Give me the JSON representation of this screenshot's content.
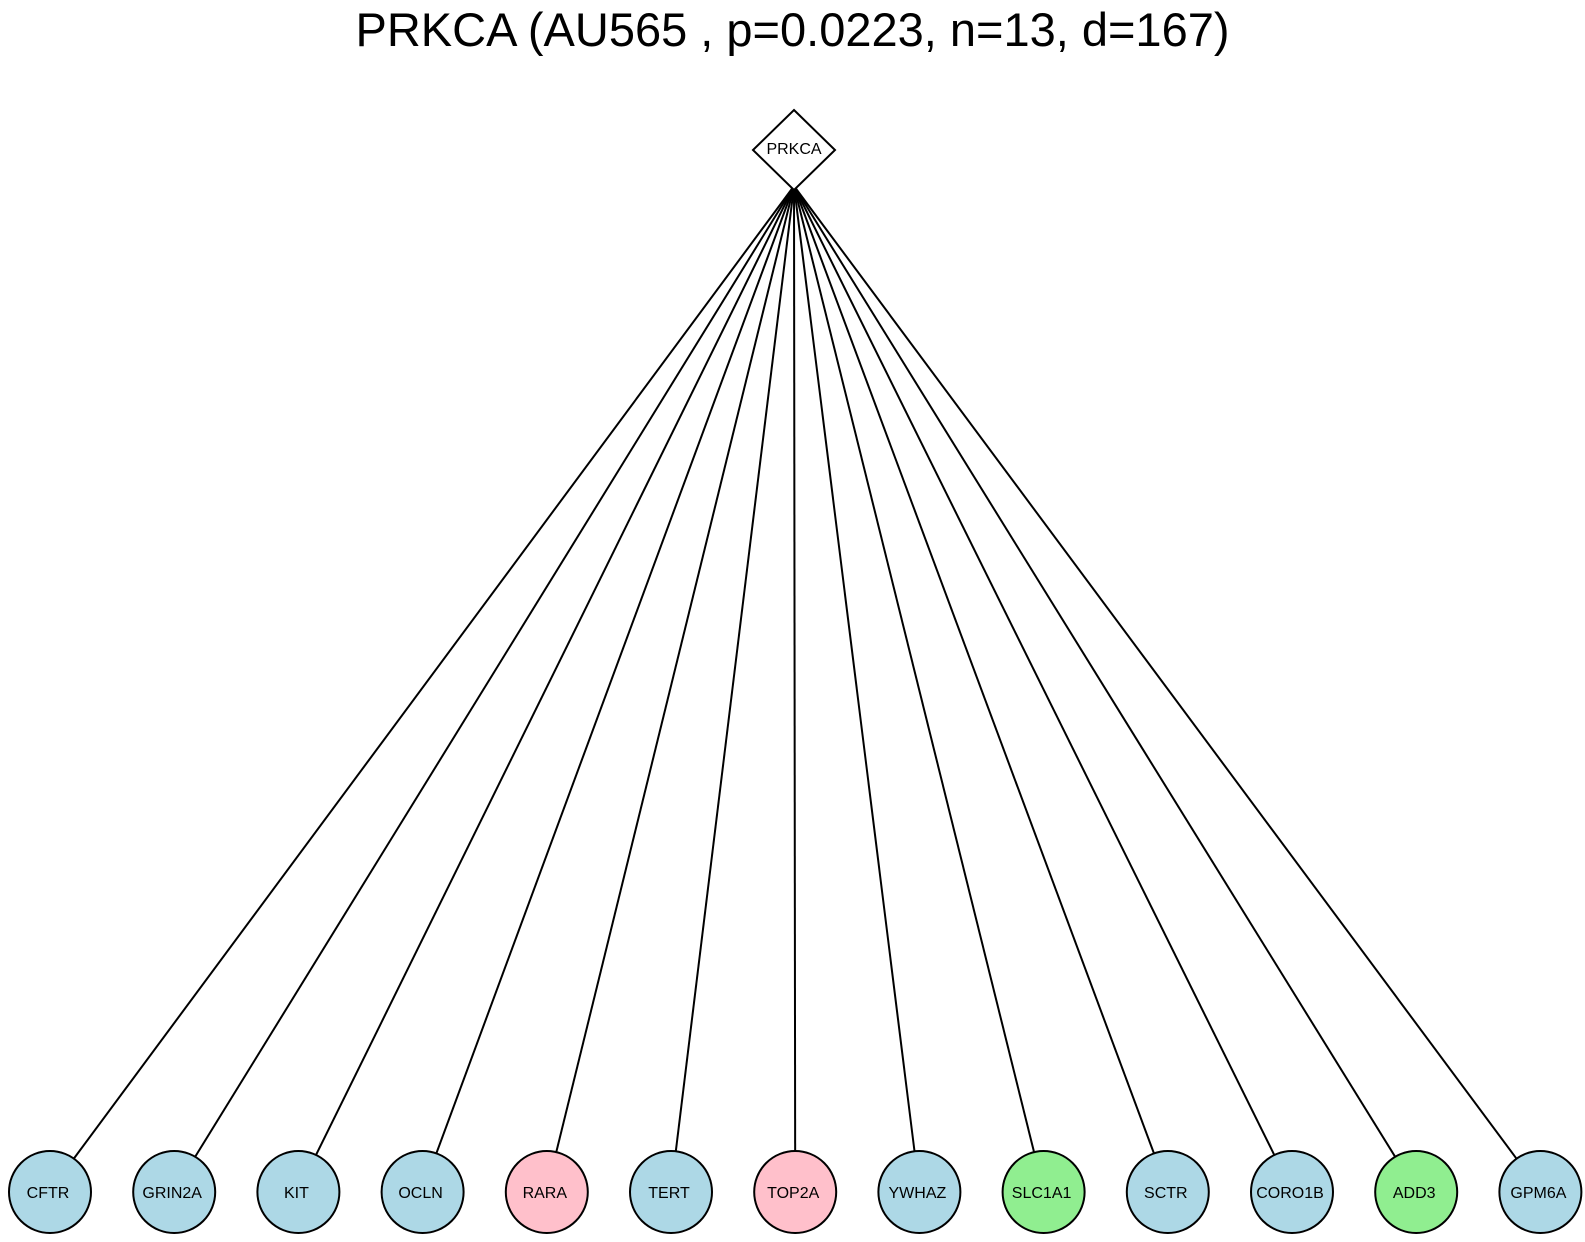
{
  "title": "PRKCA (AU565 , p=0.0223, n=13, d=167)",
  "hub": {
    "label": "PRKCA",
    "shape": "diamond",
    "fill": "#ffffff"
  },
  "colors": {
    "blue": "#add8e6",
    "pink": "#ffc0cb",
    "green": "#90ee90",
    "stroke": "#000000"
  },
  "nodes": [
    {
      "label": "CFTR",
      "color": "blue"
    },
    {
      "label": "GRIN2A",
      "color": "blue"
    },
    {
      "label": "KIT",
      "color": "blue"
    },
    {
      "label": "OCLN",
      "color": "blue"
    },
    {
      "label": "RARA",
      "color": "pink"
    },
    {
      "label": "TERT",
      "color": "blue"
    },
    {
      "label": "TOP2A",
      "color": "pink"
    },
    {
      "label": "YWHAZ",
      "color": "blue"
    },
    {
      "label": "SLC1A1",
      "color": "green"
    },
    {
      "label": "SCTR",
      "color": "blue"
    },
    {
      "label": "CORO1B",
      "color": "blue"
    },
    {
      "label": "ADD3",
      "color": "green"
    },
    {
      "label": "GPM6A",
      "color": "blue"
    }
  ]
}
